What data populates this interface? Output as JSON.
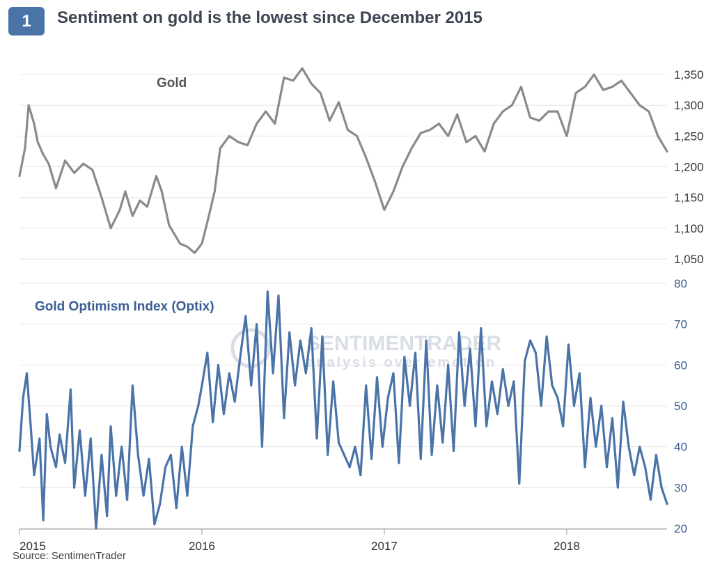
{
  "header": {
    "badge": "1",
    "title": "Sentiment on gold is the lowest since December 2015"
  },
  "footer": {
    "source": "Source: SentimenTrader"
  },
  "watermark": {
    "name": "SENTIMENTRADER",
    "tagline": "analysis over emotion"
  },
  "colors": {
    "gold": "#8a8a8a",
    "optix": "#4a73a8",
    "badge": "#4a73a8",
    "grid": "#e6e6e6"
  },
  "chart_data": {
    "type": "line",
    "x_ticks": [
      "2015",
      "2016",
      "2017",
      "2018"
    ],
    "x_range": [
      2015.0,
      2018.55
    ],
    "panels": [
      {
        "name": "Gold",
        "ylim": [
          1050,
          1375
        ],
        "y_ticks": [
          "1,350",
          "1,300",
          "1,250",
          "1,200",
          "1,150",
          "1,100",
          "1,050"
        ],
        "x": [
          2015.0,
          2015.03,
          2015.05,
          2015.08,
          2015.1,
          2015.13,
          2015.16,
          2015.2,
          2015.25,
          2015.3,
          2015.35,
          2015.4,
          2015.45,
          2015.5,
          2015.55,
          2015.58,
          2015.62,
          2015.66,
          2015.7,
          2015.75,
          2015.78,
          2015.82,
          2015.85,
          2015.88,
          2015.92,
          2015.96,
          2016.0,
          2016.03,
          2016.07,
          2016.1,
          2016.15,
          2016.2,
          2016.25,
          2016.3,
          2016.35,
          2016.4,
          2016.45,
          2016.5,
          2016.55,
          2016.6,
          2016.65,
          2016.7,
          2016.75,
          2016.8,
          2016.85,
          2016.9,
          2016.95,
          2017.0,
          2017.05,
          2017.1,
          2017.15,
          2017.2,
          2017.25,
          2017.3,
          2017.35,
          2017.4,
          2017.45,
          2017.5,
          2017.55,
          2017.6,
          2017.65,
          2017.7,
          2017.75,
          2017.8,
          2017.85,
          2017.9,
          2017.95,
          2018.0,
          2018.05,
          2018.1,
          2018.15,
          2018.2,
          2018.25,
          2018.3,
          2018.35,
          2018.4,
          2018.45,
          2018.5,
          2018.55
        ],
        "y": [
          1185,
          1230,
          1300,
          1270,
          1240,
          1220,
          1205,
          1165,
          1210,
          1190,
          1205,
          1195,
          1150,
          1100,
          1130,
          1160,
          1120,
          1145,
          1135,
          1185,
          1160,
          1105,
          1090,
          1075,
          1070,
          1060,
          1075,
          1110,
          1160,
          1230,
          1250,
          1240,
          1235,
          1270,
          1290,
          1270,
          1345,
          1340,
          1360,
          1335,
          1320,
          1275,
          1305,
          1260,
          1250,
          1215,
          1175,
          1130,
          1160,
          1200,
          1230,
          1255,
          1260,
          1270,
          1250,
          1285,
          1240,
          1250,
          1225,
          1270,
          1290,
          1300,
          1330,
          1280,
          1275,
          1290,
          1290,
          1250,
          1320,
          1330,
          1350,
          1325,
          1330,
          1340,
          1320,
          1300,
          1290,
          1250,
          1225
        ]
      },
      {
        "name": "Gold Optimism Index (Optix)",
        "ylim": [
          20,
          80
        ],
        "y_ticks": [
          "80",
          "70",
          "60",
          "50",
          "40",
          "30",
          "20"
        ],
        "x": [
          2015.0,
          2015.02,
          2015.04,
          2015.06,
          2015.08,
          2015.11,
          2015.13,
          2015.15,
          2015.17,
          2015.2,
          2015.22,
          2015.25,
          2015.28,
          2015.3,
          2015.33,
          2015.36,
          2015.39,
          2015.42,
          2015.45,
          2015.48,
          2015.5,
          2015.53,
          2015.56,
          2015.59,
          2015.62,
          2015.65,
          2015.68,
          2015.71,
          2015.74,
          2015.77,
          2015.8,
          2015.83,
          2015.86,
          2015.89,
          2015.92,
          2015.95,
          2015.98,
          2016.0,
          2016.03,
          2016.06,
          2016.09,
          2016.12,
          2016.15,
          2016.18,
          2016.21,
          2016.24,
          2016.27,
          2016.3,
          2016.33,
          2016.36,
          2016.39,
          2016.42,
          2016.45,
          2016.48,
          2016.51,
          2016.54,
          2016.57,
          2016.6,
          2016.63,
          2016.66,
          2016.69,
          2016.72,
          2016.75,
          2016.78,
          2016.81,
          2016.84,
          2016.87,
          2016.9,
          2016.93,
          2016.96,
          2016.99,
          2017.02,
          2017.05,
          2017.08,
          2017.11,
          2017.14,
          2017.17,
          2017.2,
          2017.23,
          2017.26,
          2017.29,
          2017.32,
          2017.35,
          2017.38,
          2017.41,
          2017.44,
          2017.47,
          2017.5,
          2017.53,
          2017.56,
          2017.59,
          2017.62,
          2017.65,
          2017.68,
          2017.71,
          2017.74,
          2017.77,
          2017.8,
          2017.83,
          2017.86,
          2017.89,
          2017.92,
          2017.95,
          2017.98,
          2018.01,
          2018.04,
          2018.07,
          2018.1,
          2018.13,
          2018.16,
          2018.19,
          2018.22,
          2018.25,
          2018.28,
          2018.31,
          2018.34,
          2018.37,
          2018.4,
          2018.43,
          2018.46,
          2018.49,
          2018.52,
          2018.55
        ],
        "y": [
          39,
          52,
          58,
          46,
          33,
          42,
          22,
          48,
          40,
          35,
          43,
          36,
          54,
          30,
          44,
          28,
          42,
          20,
          38,
          23,
          45,
          28,
          40,
          27,
          55,
          38,
          28,
          37,
          21,
          26,
          35,
          38,
          25,
          40,
          28,
          45,
          50,
          55,
          63,
          46,
          60,
          48,
          58,
          51,
          62,
          72,
          55,
          70,
          40,
          78,
          58,
          77,
          47,
          68,
          55,
          66,
          58,
          69,
          42,
          67,
          38,
          56,
          41,
          38,
          35,
          40,
          33,
          55,
          37,
          57,
          40,
          52,
          58,
          36,
          62,
          50,
          63,
          37,
          66,
          38,
          55,
          41,
          60,
          39,
          68,
          50,
          64,
          45,
          69,
          45,
          56,
          48,
          59,
          50,
          56,
          31,
          61,
          66,
          63,
          50,
          67,
          55,
          52,
          45,
          65,
          50,
          58,
          35,
          52,
          40,
          50,
          35,
          47,
          30,
          51,
          40,
          33,
          40,
          35,
          27,
          38,
          30,
          26
        ]
      }
    ],
    "annotations": [
      "Gold",
      "Gold Optimism Index (Optix)"
    ]
  }
}
